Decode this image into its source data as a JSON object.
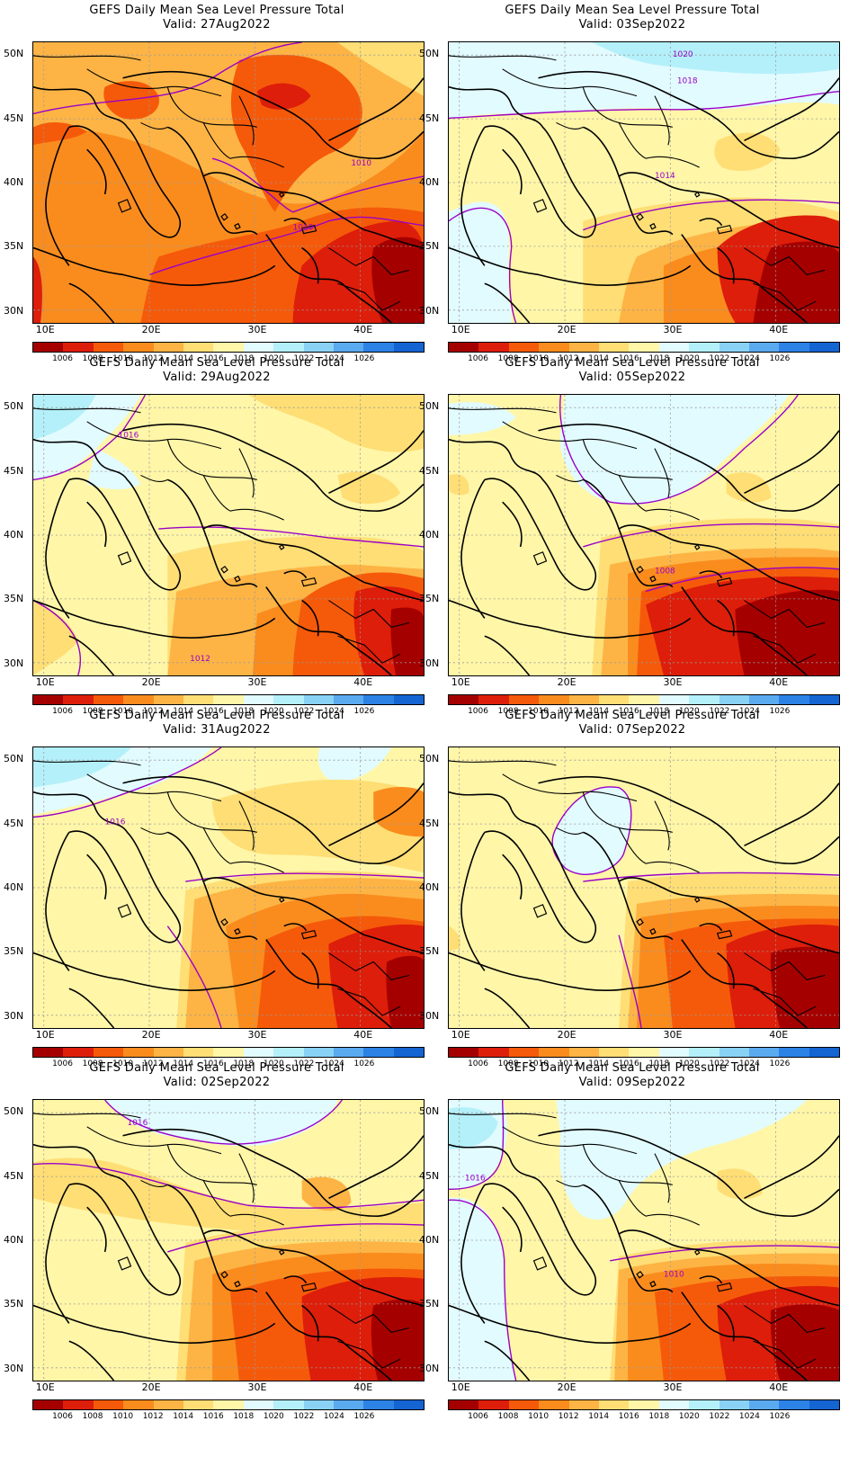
{
  "panels": [
    {
      "title": "GEFS Daily Mean Sea Level Pressure Total",
      "valid": "Valid: 27Aug2022",
      "scenario": "warm",
      "labels": [
        "1010",
        "1010",
        "1018"
      ]
    },
    {
      "title": "GEFS Daily Mean Sea Level Pressure Total",
      "valid": "Valid: 03Sep2022",
      "scenario": "cool_north",
      "labels": [
        "1020",
        "1018",
        "1014"
      ]
    },
    {
      "title": "GEFS Daily Mean Sea Level Pressure Total",
      "valid": "Valid: 29Aug2022",
      "scenario": "mild",
      "labels": [
        "1016",
        "1012"
      ]
    },
    {
      "title": "GEFS Daily Mean Sea Level Pressure Total",
      "valid": "Valid: 05Sep2022",
      "scenario": "cool_center",
      "labels": [
        "1008"
      ]
    },
    {
      "title": "GEFS Daily Mean Sea Level Pressure Total",
      "valid": "Valid: 31Aug2022",
      "scenario": "mild_orange",
      "labels": [
        "1016"
      ]
    },
    {
      "title": "GEFS Daily Mean Sea Level Pressure Total",
      "valid": "Valid: 07Sep2022",
      "scenario": "cool_balkans",
      "labels": []
    },
    {
      "title": "GEFS Daily Mean Sea Level Pressure Total",
      "valid": "Valid: 02Sep2022",
      "scenario": "mild_orange2",
      "labels": [
        "1016"
      ]
    },
    {
      "title": "GEFS Daily Mean Sea Level Pressure Total",
      "valid": "Valid: 09Sep2022",
      "scenario": "cool_west",
      "labels": [
        "1016",
        "1010"
      ]
    }
  ],
  "axes": {
    "x_ticks": [
      "10E",
      "20E",
      "30E",
      "40E"
    ],
    "y_ticks": [
      "50N",
      "45N",
      "40N",
      "35N",
      "30N"
    ]
  },
  "colorbar": {
    "labels": [
      "1006",
      "1008",
      "1010",
      "1012",
      "1014",
      "1016",
      "1018",
      "1020",
      "1022",
      "1024",
      "1026"
    ],
    "colors": [
      "#a50000",
      "#dd1e0a",
      "#f55a0a",
      "#fa8c1e",
      "#fdb445",
      "#fede75",
      "#fff6a8",
      "#e2fbff",
      "#b4f0fa",
      "#8ad2f5",
      "#5aaaf0",
      "#2d82e6",
      "#1464d2"
    ]
  },
  "colors": {
    "contour": "#9b00c8",
    "coast": "#000000",
    "grid": "#999999"
  }
}
